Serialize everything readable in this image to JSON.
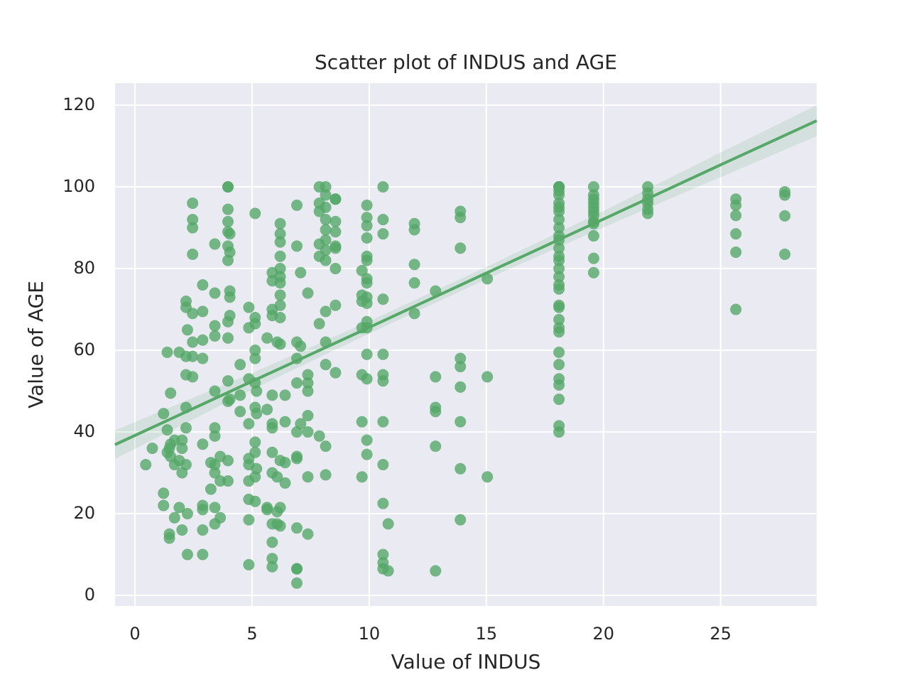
{
  "chart_data": {
    "type": "scatter",
    "title": "Scatter plot of INDUS and AGE",
    "x_label": "Value of INDUS",
    "y_label": "Value of AGE",
    "xlim": [
      -0.85,
      29.1
    ],
    "ylim": [
      -2.6,
      125.4
    ],
    "xticks": [
      0,
      5,
      10,
      15,
      20,
      25
    ],
    "yticks": [
      0,
      20,
      40,
      60,
      80,
      100,
      120
    ],
    "grid": true,
    "background": "#eaeaf2",
    "series": [
      {
        "color": "#55a868",
        "x": [
          0.46,
          0.74,
          1.22,
          1.22,
          1.22,
          1.38,
          1.38,
          1.38,
          1.47,
          1.47,
          1.47,
          1.52,
          1.52,
          1.52,
          1.69,
          1.69,
          1.69,
          1.89,
          1.89,
          1.89,
          2.01,
          2.01,
          2.01,
          2.01,
          2.18,
          2.18,
          2.18,
          2.18,
          2.18,
          2.18,
          2.18,
          2.24,
          2.24,
          2.24,
          2.46,
          2.46,
          2.46,
          2.46,
          2.46,
          2.46,
          2.46,
          2.46,
          2.89,
          2.89,
          2.89,
          2.89,
          2.89,
          2.89,
          2.89,
          2.89,
          2.89,
          3.24,
          3.24,
          3.41,
          3.41,
          3.41,
          3.41,
          3.41,
          3.41,
          3.41,
          3.41,
          3.41,
          3.41,
          3.41,
          3.64,
          3.64,
          3.64,
          3.97,
          3.97,
          3.97,
          3.97,
          3.97,
          3.97,
          3.97,
          3.97,
          3.97,
          3.97,
          3.97,
          3.97,
          3.97,
          4.05,
          4.05,
          4.05,
          4.05,
          4.05,
          4.05,
          4.49,
          4.49,
          4.49,
          4.86,
          4.86,
          4.86,
          4.86,
          4.86,
          4.86,
          4.86,
          4.86,
          4.86,
          4.86,
          5.13,
          5.13,
          5.13,
          5.13,
          5.13,
          5.13,
          5.13,
          5.13,
          5.13,
          5.13,
          5.13,
          5.19,
          5.19,
          5.19,
          5.64,
          5.64,
          5.64,
          5.64,
          5.86,
          5.86,
          5.86,
          5.86,
          5.86,
          5.86,
          5.86,
          5.86,
          5.86,
          5.86,
          5.86,
          5.86,
          5.86,
          6.07,
          6.07,
          6.07,
          6.07,
          6.2,
          6.2,
          6.2,
          6.2,
          6.2,
          6.2,
          6.2,
          6.2,
          6.2,
          6.2,
          6.2,
          6.2,
          6.2,
          6.2,
          6.41,
          6.41,
          6.41,
          6.41,
          6.91,
          6.91,
          6.91,
          6.91,
          6.91,
          6.91,
          6.91,
          6.91,
          6.91,
          6.91,
          6.91,
          6.91,
          7.07,
          7.07,
          7.07,
          7.38,
          7.38,
          7.38,
          7.38,
          7.38,
          7.38,
          7.38,
          7.38,
          7.87,
          7.87,
          7.87,
          7.87,
          7.87,
          7.87,
          7.87,
          8.14,
          8.14,
          8.14,
          8.14,
          8.14,
          8.14,
          8.14,
          8.14,
          8.14,
          8.14,
          8.14,
          8.14,
          8.14,
          8.56,
          8.56,
          8.56,
          8.56,
          8.56,
          8.56,
          8.56,
          8.56,
          8.56,
          9.69,
          9.69,
          9.69,
          9.69,
          9.69,
          9.69,
          9.69,
          9.9,
          9.9,
          9.9,
          9.9,
          9.9,
          9.9,
          9.9,
          9.9,
          9.9,
          9.9,
          9.9,
          9.9,
          9.9,
          9.9,
          9.9,
          9.9,
          10.59,
          10.59,
          10.59,
          10.59,
          10.59,
          10.59,
          10.59,
          10.59,
          10.59,
          10.59,
          10.59,
          10.59,
          10.59,
          10.81,
          10.81,
          11.93,
          11.93,
          11.93,
          11.93,
          11.93,
          12.83,
          12.83,
          12.83,
          12.83,
          12.83,
          12.83,
          13.89,
          13.89,
          13.89,
          13.89,
          13.89,
          13.89,
          13.89,
          13.89,
          13.89,
          15.04,
          15.04,
          15.04,
          18.1,
          18.1,
          18.1,
          18.1,
          18.1,
          18.1,
          18.1,
          18.1,
          18.1,
          18.1,
          18.1,
          18.1,
          18.1,
          18.1,
          18.1,
          18.1,
          18.1,
          18.1,
          18.1,
          18.1,
          18.1,
          18.1,
          18.1,
          18.1,
          18.1,
          18.1,
          18.1,
          18.1,
          18.1,
          18.1,
          18.1,
          18.1,
          19.58,
          19.58,
          19.58,
          19.58,
          19.58,
          19.58,
          19.58,
          19.58,
          19.58,
          19.58,
          19.58,
          19.58,
          21.89,
          21.89,
          21.89,
          21.89,
          21.89,
          21.89,
          25.65,
          25.65,
          25.65,
          25.65,
          25.65,
          25.65,
          27.74,
          27.74,
          27.74,
          27.74
        ],
        "values": [
          32,
          36,
          25,
          22,
          44.5,
          40.5,
          59.5,
          35,
          15,
          14,
          36,
          49.5,
          37,
          34,
          19,
          32,
          38,
          21.5,
          59.5,
          33,
          16,
          30,
          38,
          36,
          72,
          70.5,
          58.5,
          54,
          46,
          41,
          32,
          65,
          20,
          10,
          96,
          92,
          90,
          83.5,
          69,
          62,
          58.5,
          53.5,
          76,
          69.5,
          62.5,
          58,
          37,
          22,
          21,
          16,
          10,
          26,
          32.5,
          86,
          74,
          66,
          63.5,
          50,
          41,
          39,
          32,
          30,
          21.5,
          17.5,
          19,
          34,
          28,
          100,
          100,
          94.5,
          91.5,
          89,
          85.5,
          82,
          67,
          63,
          52.5,
          47.5,
          33,
          28,
          88.5,
          84,
          74.5,
          73,
          68.5,
          48,
          56.5,
          49,
          45,
          70.5,
          65.5,
          53,
          42,
          33.5,
          32,
          28,
          23.5,
          18.5,
          7.5,
          93.5,
          68,
          66.5,
          60,
          58,
          52,
          46,
          37.5,
          35,
          29,
          23,
          50,
          44.5,
          31,
          63,
          45.5,
          21.5,
          21,
          79,
          77,
          70,
          68.5,
          49,
          42,
          41,
          35,
          30,
          17.5,
          13,
          9,
          7,
          62,
          29,
          20.5,
          17.5,
          91,
          88.5,
          86.5,
          83,
          80,
          78,
          76.5,
          73.5,
          71,
          68,
          61.5,
          33,
          21.5,
          17,
          49,
          42.5,
          32.5,
          27.5,
          95.5,
          85.5,
          62,
          58,
          52,
          40,
          34,
          33.5,
          16.5,
          6.5,
          6.5,
          3,
          79,
          61,
          42,
          74,
          54,
          52,
          50,
          44,
          40,
          29,
          15,
          100,
          96,
          94,
          86,
          83,
          66.5,
          39,
          100,
          98,
          95,
          92,
          89.5,
          87,
          84.5,
          82,
          69.5,
          62,
          56.5,
          36.5,
          29.5,
          97,
          97,
          91.5,
          89,
          85.5,
          85,
          80,
          71,
          54.5,
          79.5,
          73.5,
          72,
          65.5,
          54,
          42.5,
          29,
          95.5,
          92.5,
          90.5,
          87.5,
          83,
          82,
          77.5,
          76.5,
          73,
          71.5,
          67,
          65.5,
          59,
          53,
          38,
          34.5,
          100,
          92,
          88.5,
          72.5,
          59,
          54,
          52.5,
          42.5,
          32,
          22.5,
          10,
          8,
          6.5,
          17.5,
          6,
          91,
          89.5,
          81,
          76.5,
          69,
          74.5,
          53.5,
          46,
          45,
          36.5,
          6,
          94,
          92.5,
          85,
          58,
          56,
          51,
          42.5,
          31,
          18.5,
          77.5,
          53.5,
          29,
          100,
          100,
          100,
          100,
          99,
          98,
          96,
          95,
          94,
          92,
          90,
          88,
          87,
          85,
          83,
          82,
          80,
          78,
          76,
          75,
          71,
          70.5,
          67.5,
          65.5,
          64.5,
          59.5,
          56.5,
          53,
          51.5,
          48,
          41.5,
          40,
          100,
          98,
          97,
          96,
          95,
          94,
          93,
          91.5,
          91,
          88,
          82.5,
          79,
          100,
          98.5,
          97,
          96,
          94.5,
          93.5,
          97,
          95.5,
          93,
          88.5,
          84,
          70,
          98.8,
          98,
          92.9,
          83.5
        ]
      }
    ],
    "fit": {
      "x": [
        -0.85,
        5,
        10,
        15,
        20,
        25,
        29.1
      ],
      "y": [
        36.9,
        52.4,
        65.6,
        78.9,
        92.1,
        105.4,
        116.2
      ],
      "ci_lower": [
        33.4,
        50.4,
        64.1,
        77.4,
        90.1,
        102.4,
        112.4
      ],
      "ci_upper": [
        40.4,
        54.4,
        67.1,
        80.4,
        94.1,
        108.4,
        120.0
      ]
    }
  }
}
